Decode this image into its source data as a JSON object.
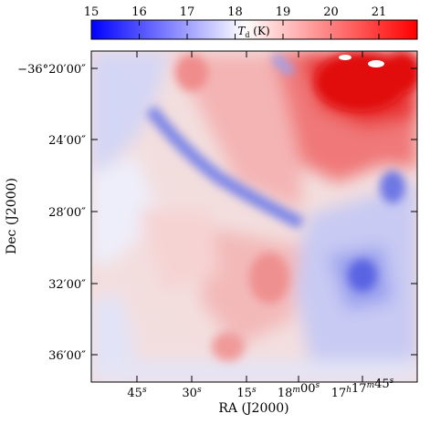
{
  "chart_data": {
    "type": "heatmap",
    "title": "",
    "xlabel": "RA (J2000)",
    "ylabel": "Dec (J2000)",
    "x_ticks": [
      {
        "value": "45s",
        "main": "45",
        "sup": "s"
      },
      {
        "value": "30s",
        "main": "30",
        "sup": "s"
      },
      {
        "value": "15s",
        "main": "15",
        "sup": "s"
      },
      {
        "value": "18m00s",
        "main": "18",
        "sup": "m",
        "main2": "00",
        "sup2": "s"
      },
      {
        "value": "17h17m45s",
        "main": "17",
        "sup": "h",
        "main2": "17",
        "sup2": "m",
        "main3": "45",
        "sup3": "s"
      }
    ],
    "y_ticks": [
      "−36°20′00″",
      "24′00″",
      "28′00″",
      "32′00″",
      "36′00″"
    ],
    "colorbar": {
      "label": "T",
      "label_sub": "d",
      "label_unit": " (K)",
      "ticks": [
        "15",
        "16",
        "17",
        "18",
        "19",
        "20",
        "21"
      ],
      "range": [
        15,
        21.8
      ],
      "colormap": "bwr",
      "low_color": "#0000ff",
      "mid_color": "#ffffff",
      "high_color": "#ff0000"
    },
    "features": [
      {
        "name": "cold filament (diagonal)",
        "temperature_K": 16.3
      },
      {
        "name": "warm region top-right",
        "temperature_K": 21.5
      },
      {
        "name": "cold clump lower-right",
        "temperature_K": 16.2
      },
      {
        "name": "warm clump center-bottom",
        "temperature_K": 19.3
      },
      {
        "name": "cold clump right edge",
        "temperature_K": 16.4
      }
    ]
  }
}
